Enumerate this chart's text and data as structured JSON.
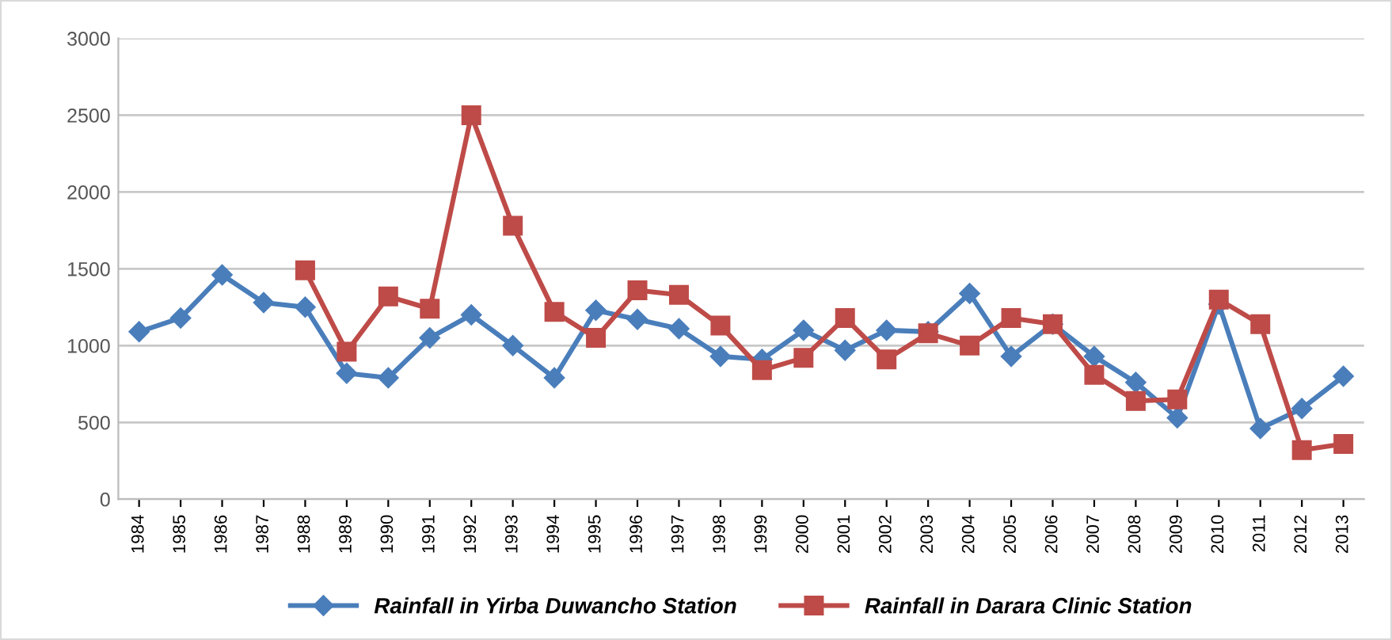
{
  "chart_data": {
    "type": "line",
    "categories": [
      "1984",
      "1985",
      "1986",
      "1987",
      "1988",
      "1989",
      "1990",
      "1991",
      "1992",
      "1993",
      "1994",
      "1995",
      "1996",
      "1997",
      "1998",
      "1999",
      "2000",
      "2001",
      "2002",
      "2003",
      "2004",
      "2005",
      "2006",
      "2007",
      "2008",
      "2009",
      "2010",
      "2011",
      "2012",
      "2013"
    ],
    "series": [
      {
        "name": "Rainfall in Yirba Duwancho Station",
        "color": "#4a7ebb",
        "marker": "diamond",
        "values": [
          1090,
          1180,
          1460,
          1280,
          1250,
          820,
          790,
          1050,
          1200,
          1000,
          790,
          1230,
          1170,
          1110,
          930,
          910,
          1100,
          970,
          1100,
          1090,
          1340,
          930,
          1140,
          930,
          760,
          530,
          1270,
          460,
          590,
          800
        ]
      },
      {
        "name": "Rainfall in Darara Clinic Station",
        "color": "#be4b48",
        "marker": "square",
        "values": [
          null,
          null,
          null,
          null,
          1490,
          960,
          1320,
          1240,
          2500,
          1780,
          1220,
          1050,
          1360,
          1330,
          1130,
          840,
          920,
          1180,
          910,
          1080,
          1000,
          1180,
          1140,
          810,
          640,
          650,
          1300,
          1140,
          320,
          360
        ]
      }
    ],
    "ylim": [
      0,
      3000
    ],
    "yticks": [
      0,
      500,
      1000,
      1500,
      2000,
      2500,
      3000
    ],
    "grid": "y",
    "legend": "bottom",
    "line_style": "solid"
  }
}
